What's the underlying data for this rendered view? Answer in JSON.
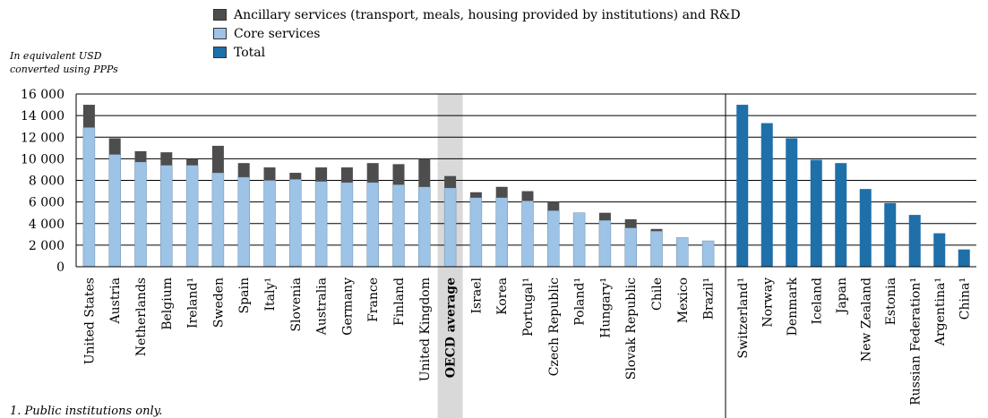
{
  "legend": {
    "ancillary": "Ancillary services (transport, meals, housing provided by institutions) and R&D",
    "core": "Core services",
    "total": "Total"
  },
  "unit_label_line1": "In equivalent USD",
  "unit_label_line2": "converted using PPPs",
  "footnote": "1. Public institutions only.",
  "colors": {
    "ancillary": "#4d4d4d",
    "core": "#9dc3e6",
    "total": "#1f6fa9",
    "oecd_band": "#d9d9d9"
  },
  "chart_data": {
    "type": "bar",
    "stacked_group": {
      "categories": [
        "United States",
        "Austria",
        "Netherlands",
        "Belgium",
        "Ireland¹",
        "Sweden",
        "Spain",
        "Italy¹",
        "Slovenia",
        "Australia",
        "Germany",
        "France",
        "Finland",
        "United Kingdom",
        "OECD average",
        "Israel",
        "Korea",
        "Portugal¹",
        "Czech Republic",
        "Poland¹",
        "Hungary¹",
        "Slovak Republic",
        "Chile",
        "Mexico",
        "Brazil¹"
      ],
      "series": [
        {
          "name": "Core services",
          "values": [
            12900,
            10400,
            9700,
            9400,
            9400,
            8700,
            8300,
            8000,
            8100,
            7900,
            7800,
            7800,
            7600,
            7400,
            7300,
            6400,
            6400,
            6100,
            5200,
            5000,
            4300,
            3600,
            3300,
            2700,
            2400
          ]
        },
        {
          "name": "Ancillary services (transport, meals, housing provided by institutions) and R&D",
          "values": [
            2100,
            1500,
            1000,
            1200,
            600,
            2500,
            1300,
            1200,
            600,
            1300,
            1400,
            1800,
            1900,
            2600,
            1100,
            500,
            1000,
            900,
            800,
            0,
            700,
            800,
            200,
            0,
            0
          ]
        }
      ]
    },
    "total_group": {
      "categories": [
        "Switzerland¹",
        "Norway",
        "Denmark",
        "Iceland",
        "Japan",
        "New Zealand",
        "Estonia",
        "Russian Federation¹",
        "Argentina¹",
        "China¹"
      ],
      "series": [
        {
          "name": "Total",
          "values": [
            15000,
            13300,
            11900,
            9900,
            9600,
            7200,
            5900,
            4800,
            3100,
            1600
          ]
        }
      ]
    },
    "highlight_category": "OECD average",
    "ylim": [
      0,
      16000
    ],
    "yticks": [
      0,
      2000,
      4000,
      6000,
      8000,
      10000,
      12000,
      14000,
      16000
    ],
    "ytick_labels": [
      "0",
      "2 000",
      "4 000",
      "6 000",
      "8 000",
      "10 000",
      "12 000",
      "14 000",
      "16 000"
    ],
    "grid": true,
    "legend_position": "top"
  }
}
